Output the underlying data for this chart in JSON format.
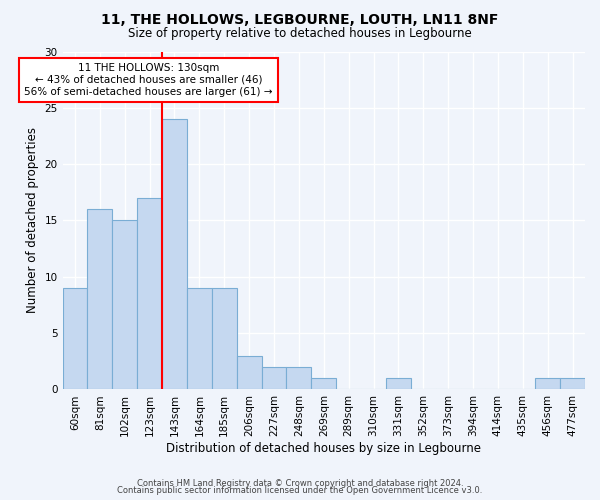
{
  "title1": "11, THE HOLLOWS, LEGBOURNE, LOUTH, LN11 8NF",
  "title2": "Size of property relative to detached houses in Legbourne",
  "xlabel": "Distribution of detached houses by size in Legbourne",
  "ylabel": "Number of detached properties",
  "bar_labels": [
    "60sqm",
    "81sqm",
    "102sqm",
    "123sqm",
    "143sqm",
    "164sqm",
    "185sqm",
    "206sqm",
    "227sqm",
    "248sqm",
    "269sqm",
    "289sqm",
    "310sqm",
    "331sqm",
    "352sqm",
    "373sqm",
    "394sqm",
    "414sqm",
    "435sqm",
    "456sqm",
    "477sqm"
  ],
  "bar_values": [
    9,
    16,
    15,
    17,
    24,
    9,
    9,
    3,
    2,
    2,
    1,
    0,
    0,
    1,
    0,
    0,
    0,
    0,
    0,
    1,
    1
  ],
  "bar_color": "#c5d8f0",
  "bar_edgecolor": "#7aadd4",
  "bar_linewidth": 0.8,
  "vline_color": "red",
  "annotation_text": "11 THE HOLLOWS: 130sqm\n← 43% of detached houses are smaller (46)\n56% of semi-detached houses are larger (61) →",
  "annotation_box_color": "white",
  "annotation_box_edgecolor": "red",
  "ylim": [
    0,
    30
  ],
  "yticks": [
    0,
    5,
    10,
    15,
    20,
    25,
    30
  ],
  "bg_color": "#f0f4fb",
  "footer1": "Contains HM Land Registry data © Crown copyright and database right 2024.",
  "footer2": "Contains public sector information licensed under the Open Government Licence v3.0."
}
